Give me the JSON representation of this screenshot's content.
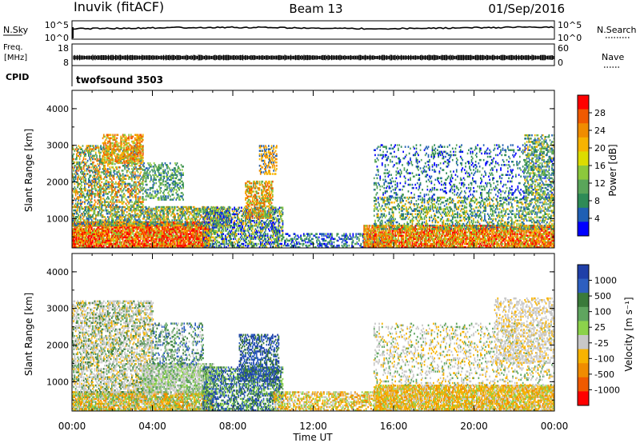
{
  "header": {
    "station": "Inuvik (fitACF)",
    "beam": "Beam 13",
    "date": "01/Sep/2016"
  },
  "top_panels": {
    "nsky_label": "N.Sky",
    "nsky_ticks": [
      "10^5",
      "10^0"
    ],
    "nsearch_ticks": [
      "10^5",
      "10^0"
    ],
    "nsearch_label": "N.Search",
    "freq_label_1": "Freq.",
    "freq_label_2": "[MHz]",
    "freq_ticks": [
      "18",
      "8"
    ],
    "nave_ticks": [
      "60",
      "0"
    ],
    "nave_label": "Nave",
    "cpid_label": "CPID",
    "cpid_value": "twofsound 3503"
  },
  "chart_data": [
    {
      "type": "heatmap",
      "panel": "power",
      "ylabel": "Slant Range [km]",
      "yticks": [
        "1000",
        "2000",
        "3000",
        "4000"
      ],
      "ylim": [
        200,
        4500
      ],
      "xlim": [
        "00:00",
        "24:00"
      ],
      "colorbar_label": "Power [dB]",
      "colorbar_ticks": [
        "28",
        "24",
        "20",
        "16",
        "12",
        "8",
        "4"
      ],
      "colorscale": [
        "#0000ff",
        "#1f5fb4",
        "#2e8b57",
        "#5aa55a",
        "#8cc83c",
        "#dcdc00",
        "#f7b300",
        "#f08c00",
        "#f05a00",
        "#ff0000"
      ]
    },
    {
      "type": "heatmap",
      "panel": "velocity",
      "ylabel": "Slant Range [km]",
      "yticks": [
        "1000",
        "2000",
        "3000",
        "4000"
      ],
      "ylim": [
        200,
        4500
      ],
      "xlabel": "Time UT",
      "xticks": [
        "00:00",
        "04:00",
        "08:00",
        "12:00",
        "16:00",
        "20:00",
        "00:00"
      ],
      "colorbar_label": "Velocity [m s⁻¹]",
      "colorbar_ticks": [
        "1000",
        "500",
        "100",
        "25",
        "-25",
        "-100",
        "-500",
        "-1000"
      ],
      "colorscale": [
        "#1f3fa8",
        "#2e5fc0",
        "#3a7a3a",
        "#5fa55f",
        "#8cd24b",
        "#c8c8c8",
        "#f7b300",
        "#f08c00",
        "#f05a00",
        "#ff0000"
      ]
    }
  ]
}
